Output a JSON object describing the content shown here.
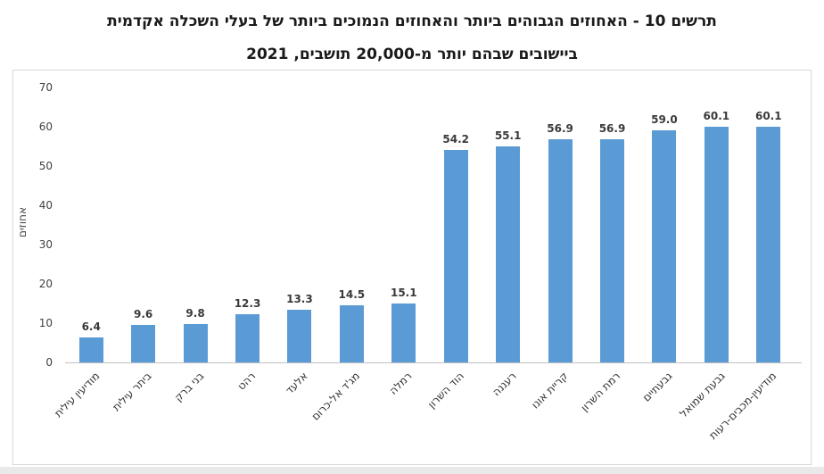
{
  "title": {
    "line1": "תרשים 10 - האחוזים הגבוהים ביותר והאחוזים הנמוכים ביותר של בעלי השכלה אקדמית",
    "line2": "ביישובים שבהם יותר מ-20,000 תושבים, 2021"
  },
  "chart_data": {
    "type": "bar",
    "categories": [
      "מודיעין עילית",
      "ביתר עילית",
      "בני ברק",
      "רהט",
      "אלעד",
      "מג'ד אל-כרום",
      "רמלה",
      "הוד השרון",
      "רעננה",
      "קריית אונו",
      "רמת השרון",
      "גבעתיים",
      "גבעת שמואל",
      "מודיעין-מכבים-רעות"
    ],
    "values": [
      6.4,
      9.6,
      9.8,
      12.3,
      13.3,
      14.5,
      15.1,
      54.2,
      55.1,
      56.9,
      56.9,
      59.0,
      60.1,
      60.1
    ],
    "data_labels": [
      "6.4",
      "9.6",
      "9.8",
      "12.3",
      "13.3",
      "14.5",
      "15.1",
      "54.2",
      "55.1",
      "56.9",
      "56.9",
      "59.0",
      "60.1",
      "60.1"
    ],
    "xlabel": "",
    "ylabel": "אחוזים",
    "ylim": [
      0,
      70
    ],
    "ytick_step": 10,
    "yticks": [
      0,
      10,
      20,
      30,
      40,
      50,
      60,
      70
    ],
    "bar_color": "#5b9bd5",
    "grid": false,
    "legend": false,
    "title_position": "top-center",
    "text_direction": "rtl"
  }
}
